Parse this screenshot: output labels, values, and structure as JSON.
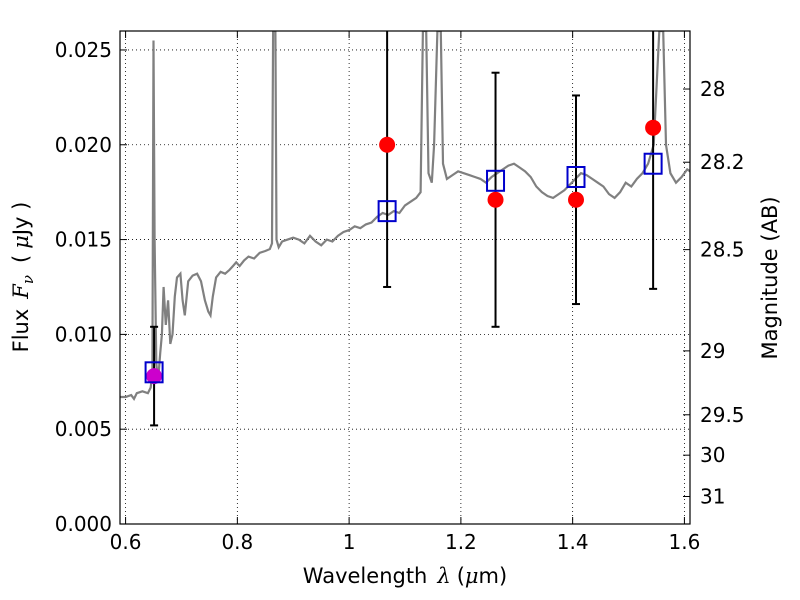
{
  "chart_data": {
    "type": "scatter",
    "xlabel_text": "Wavelength",
    "xlabel_symbol": "λ",
    "xlabel_unit_open": "(",
    "xlabel_unit_mu": "μ",
    "xlabel_unit_rest": "m)",
    "ylabel_text": "Flux",
    "ylabel_symbol_F": "F",
    "ylabel_symbol_sub": "ν",
    "ylabel_unit_open": "(",
    "ylabel_unit_mu": "μ",
    "ylabel_unit_rest": "Jy )",
    "y2label": "Magnitude (AB)",
    "xlim": [
      0.59,
      1.61
    ],
    "ylim": [
      0.0,
      0.026
    ],
    "grid": true,
    "x_ticks": [
      0.6,
      0.8,
      1.0,
      1.2,
      1.4,
      1.6
    ],
    "x_tick_labels": [
      "0.6",
      "0.8",
      "1",
      "1.2",
      "1.4",
      "1.6"
    ],
    "y_ticks": [
      0.0,
      0.005,
      0.01,
      0.015,
      0.02,
      0.025
    ],
    "y_tick_labels": [
      "0.000",
      "0.005",
      "0.010",
      "0.015",
      "0.020",
      "0.025"
    ],
    "mag_ticks": [
      {
        "label": "28",
        "flux": 0.02294
      },
      {
        "label": "28.2",
        "flux": 0.01908
      },
      {
        "label": "28.5",
        "flux": 0.01447
      },
      {
        "label": "29",
        "flux": 0.00913
      },
      {
        "label": "29.5",
        "flux": 0.00576
      },
      {
        "label": "30",
        "flux": 0.00363
      },
      {
        "label": "31",
        "flux": 0.00145
      }
    ],
    "spectrum": {
      "color": "#808080",
      "points": [
        [
          0.59,
          0.0067
        ],
        [
          0.6,
          0.0067
        ],
        [
          0.61,
          0.0068
        ],
        [
          0.615,
          0.0066
        ],
        [
          0.62,
          0.0069
        ],
        [
          0.63,
          0.007
        ],
        [
          0.64,
          0.0069
        ],
        [
          0.645,
          0.0072
        ],
        [
          0.648,
          0.008
        ],
        [
          0.65,
          0.0255
        ],
        [
          0.652,
          0.015
        ],
        [
          0.655,
          0.0085
        ],
        [
          0.658,
          0.0075
        ],
        [
          0.662,
          0.009
        ],
        [
          0.665,
          0.01
        ],
        [
          0.668,
          0.0125
        ],
        [
          0.672,
          0.0105
        ],
        [
          0.676,
          0.0118
        ],
        [
          0.68,
          0.0095
        ],
        [
          0.684,
          0.01
        ],
        [
          0.688,
          0.012
        ],
        [
          0.692,
          0.013
        ],
        [
          0.698,
          0.0132
        ],
        [
          0.702,
          0.0118
        ],
        [
          0.706,
          0.011
        ],
        [
          0.712,
          0.0128
        ],
        [
          0.72,
          0.0131
        ],
        [
          0.728,
          0.0132
        ],
        [
          0.735,
          0.0128
        ],
        [
          0.742,
          0.0118
        ],
        [
          0.748,
          0.0112
        ],
        [
          0.752,
          0.011
        ],
        [
          0.756,
          0.012
        ],
        [
          0.762,
          0.013
        ],
        [
          0.77,
          0.0133
        ],
        [
          0.778,
          0.0132
        ],
        [
          0.786,
          0.0134
        ],
        [
          0.792,
          0.0136
        ],
        [
          0.798,
          0.0138
        ],
        [
          0.804,
          0.0136
        ],
        [
          0.812,
          0.0139
        ],
        [
          0.82,
          0.0141
        ],
        [
          0.83,
          0.014
        ],
        [
          0.84,
          0.0143
        ],
        [
          0.85,
          0.0144
        ],
        [
          0.858,
          0.0145
        ],
        [
          0.862,
          0.0148
        ],
        [
          0.864,
          0.026
        ],
        [
          0.868,
          0.026
        ],
        [
          0.87,
          0.015
        ],
        [
          0.874,
          0.0146
        ],
        [
          0.88,
          0.0149
        ],
        [
          0.89,
          0.015
        ],
        [
          0.9,
          0.0151
        ],
        [
          0.91,
          0.015
        ],
        [
          0.92,
          0.0148
        ],
        [
          0.93,
          0.0152
        ],
        [
          0.94,
          0.0149
        ],
        [
          0.95,
          0.0147
        ],
        [
          0.96,
          0.015
        ],
        [
          0.97,
          0.0149
        ],
        [
          0.98,
          0.0152
        ],
        [
          0.99,
          0.0154
        ],
        [
          1.0,
          0.0155
        ],
        [
          1.01,
          0.0157
        ],
        [
          1.02,
          0.0156
        ],
        [
          1.03,
          0.0158
        ],
        [
          1.04,
          0.0159
        ],
        [
          1.05,
          0.0162
        ],
        [
          1.06,
          0.0164
        ],
        [
          1.07,
          0.0163
        ],
        [
          1.08,
          0.0165
        ],
        [
          1.09,
          0.0164
        ],
        [
          1.1,
          0.0168
        ],
        [
          1.11,
          0.017
        ],
        [
          1.12,
          0.0172
        ],
        [
          1.128,
          0.0175
        ],
        [
          1.132,
          0.026
        ],
        [
          1.138,
          0.026
        ],
        [
          1.142,
          0.0185
        ],
        [
          1.148,
          0.018
        ],
        [
          1.152,
          0.02
        ],
        [
          1.158,
          0.026
        ],
        [
          1.164,
          0.026
        ],
        [
          1.168,
          0.019
        ],
        [
          1.175,
          0.0182
        ],
        [
          1.185,
          0.0184
        ],
        [
          1.195,
          0.0186
        ],
        [
          1.205,
          0.0185
        ],
        [
          1.215,
          0.0184
        ],
        [
          1.225,
          0.0183
        ],
        [
          1.235,
          0.0182
        ],
        [
          1.245,
          0.018
        ],
        [
          1.255,
          0.0183
        ],
        [
          1.265,
          0.0185
        ],
        [
          1.275,
          0.0187
        ],
        [
          1.285,
          0.0189
        ],
        [
          1.295,
          0.019
        ],
        [
          1.305,
          0.0188
        ],
        [
          1.315,
          0.0186
        ],
        [
          1.325,
          0.0183
        ],
        [
          1.335,
          0.0178
        ],
        [
          1.345,
          0.0175
        ],
        [
          1.355,
          0.0173
        ],
        [
          1.365,
          0.0172
        ],
        [
          1.375,
          0.0174
        ],
        [
          1.385,
          0.0176
        ],
        [
          1.395,
          0.0179
        ],
        [
          1.405,
          0.0182
        ],
        [
          1.415,
          0.0185
        ],
        [
          1.425,
          0.0184
        ],
        [
          1.435,
          0.0182
        ],
        [
          1.445,
          0.018
        ],
        [
          1.455,
          0.0178
        ],
        [
          1.465,
          0.0174
        ],
        [
          1.475,
          0.0172
        ],
        [
          1.485,
          0.0175
        ],
        [
          1.495,
          0.018
        ],
        [
          1.505,
          0.0178
        ],
        [
          1.515,
          0.0182
        ],
        [
          1.525,
          0.0185
        ],
        [
          1.535,
          0.019
        ],
        [
          1.545,
          0.02
        ],
        [
          1.55,
          0.023
        ],
        [
          1.555,
          0.026
        ],
        [
          1.562,
          0.026
        ],
        [
          1.567,
          0.02
        ],
        [
          1.575,
          0.0185
        ],
        [
          1.585,
          0.018
        ],
        [
          1.595,
          0.0183
        ],
        [
          1.605,
          0.0187
        ],
        [
          1.61,
          0.0186
        ]
      ]
    },
    "photometry": {
      "color": "#ff0000",
      "points": [
        {
          "x": 1.068,
          "y": 0.02,
          "err_lo": 0.0125,
          "err_hi": 0.026
        },
        {
          "x": 1.262,
          "y": 0.0171,
          "err_lo": 0.0104,
          "err_hi": 0.0238
        },
        {
          "x": 1.406,
          "y": 0.0171,
          "err_lo": 0.0116,
          "err_hi": 0.0226
        },
        {
          "x": 1.544,
          "y": 0.0209,
          "err_lo": 0.0124,
          "err_hi": 0.026
        }
      ]
    },
    "photometry_optical": {
      "color": "#cc00cc",
      "points": [
        {
          "x": 0.651,
          "y": 0.0078,
          "err_lo": 0.0052,
          "err_hi": 0.0104
        }
      ]
    },
    "model_squares": {
      "color": "#0000cc",
      "points": [
        {
          "x": 0.651,
          "y": 0.008
        },
        {
          "x": 1.068,
          "y": 0.0165
        },
        {
          "x": 1.262,
          "y": 0.0181
        },
        {
          "x": 1.406,
          "y": 0.0183
        },
        {
          "x": 1.544,
          "y": 0.019
        }
      ]
    }
  }
}
